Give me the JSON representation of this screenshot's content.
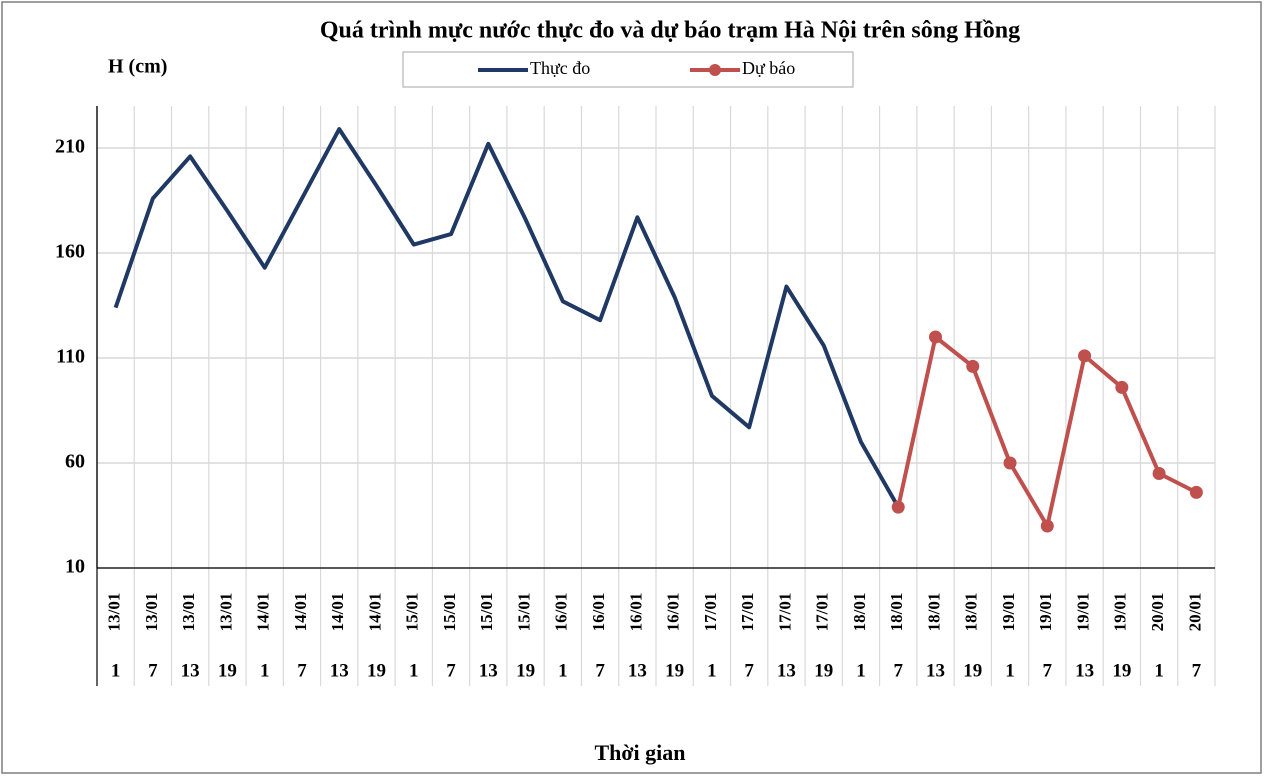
{
  "chart_data": {
    "type": "line",
    "title": "Quá trình  mực nước thực đo và dự báo trạm Hà Nội trên sông Hồng",
    "y_label": "H (cm)",
    "x_label": "Thời gian",
    "categories": [
      "13/01",
      "13/01",
      "13/01",
      "13/01",
      "14/01",
      "14/01",
      "14/01",
      "14/01",
      "15/01",
      "15/01",
      "15/01",
      "15/01",
      "16/01",
      "16/01",
      "16/01",
      "16/01",
      "17/01",
      "17/01",
      "17/01",
      "17/01",
      "18/01",
      "18/01",
      "18/01",
      "18/01",
      "19/01",
      "19/01",
      "19/01",
      "19/01",
      "20/01",
      "20/01"
    ],
    "subcategories": [
      "1",
      "7",
      "13",
      "19",
      "1",
      "7",
      "13",
      "19",
      "1",
      "7",
      "13",
      "19",
      "1",
      "7",
      "13",
      "19",
      "1",
      "7",
      "13",
      "19",
      "1",
      "7",
      "13",
      "19",
      "1",
      "7",
      "13",
      "19",
      "1",
      "7"
    ],
    "series": [
      {
        "name": "Thực đo",
        "color": "#1f3864",
        "marker": false,
        "values": [
          134,
          186,
          206,
          180,
          153,
          186,
          219,
          192,
          164,
          169,
          212,
          176,
          137,
          128,
          177,
          139,
          92,
          77,
          144,
          116,
          70,
          39,
          null,
          null,
          null,
          null,
          null,
          null,
          null,
          null
        ]
      },
      {
        "name": "Dự báo",
        "color": "#c0504d",
        "marker": true,
        "values": [
          null,
          null,
          null,
          null,
          null,
          null,
          null,
          null,
          null,
          null,
          null,
          null,
          null,
          null,
          null,
          null,
          null,
          null,
          null,
          null,
          null,
          39,
          120,
          106,
          60,
          30,
          111,
          96,
          55,
          46
        ]
      }
    ],
    "ylim": [
      10,
      230
    ],
    "yticks": [
      10,
      60,
      110,
      160,
      210
    ],
    "grid": true,
    "legend": "top"
  }
}
